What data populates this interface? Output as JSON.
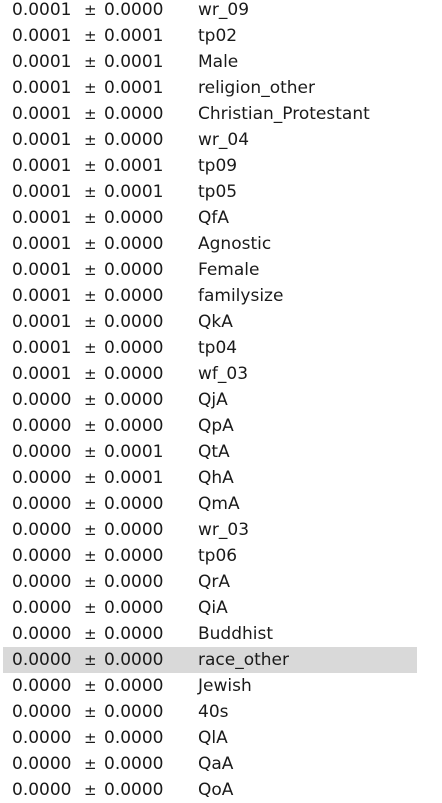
{
  "table": {
    "pm_symbol": "±",
    "selected_index": 25,
    "rows": [
      {
        "weight": "0.0001",
        "std": "0.0000",
        "feature": "wr_09"
      },
      {
        "weight": "0.0001",
        "std": "0.0001",
        "feature": "tp02"
      },
      {
        "weight": "0.0001",
        "std": "0.0001",
        "feature": "Male"
      },
      {
        "weight": "0.0001",
        "std": "0.0001",
        "feature": "religion_other"
      },
      {
        "weight": "0.0001",
        "std": "0.0000",
        "feature": "Christian_Protestant"
      },
      {
        "weight": "0.0001",
        "std": "0.0000",
        "feature": "wr_04"
      },
      {
        "weight": "0.0001",
        "std": "0.0001",
        "feature": "tp09"
      },
      {
        "weight": "0.0001",
        "std": "0.0001",
        "feature": "tp05"
      },
      {
        "weight": "0.0001",
        "std": "0.0000",
        "feature": "QfA"
      },
      {
        "weight": "0.0001",
        "std": "0.0000",
        "feature": "Agnostic"
      },
      {
        "weight": "0.0001",
        "std": "0.0000",
        "feature": "Female"
      },
      {
        "weight": "0.0001",
        "std": "0.0000",
        "feature": "familysize"
      },
      {
        "weight": "0.0001",
        "std": "0.0000",
        "feature": "QkA"
      },
      {
        "weight": "0.0001",
        "std": "0.0000",
        "feature": "tp04"
      },
      {
        "weight": "0.0001",
        "std": "0.0000",
        "feature": "wf_03"
      },
      {
        "weight": "0.0000",
        "std": "0.0000",
        "feature": "QjA"
      },
      {
        "weight": "0.0000",
        "std": "0.0000",
        "feature": "QpA"
      },
      {
        "weight": "0.0000",
        "std": "0.0001",
        "feature": "QtA"
      },
      {
        "weight": "0.0000",
        "std": "0.0001",
        "feature": "QhA"
      },
      {
        "weight": "0.0000",
        "std": "0.0000",
        "feature": "QmA"
      },
      {
        "weight": "0.0000",
        "std": "0.0000",
        "feature": "wr_03"
      },
      {
        "weight": "0.0000",
        "std": "0.0000",
        "feature": "tp06"
      },
      {
        "weight": "0.0000",
        "std": "0.0000",
        "feature": "QrA"
      },
      {
        "weight": "0.0000",
        "std": "0.0000",
        "feature": "QiA"
      },
      {
        "weight": "0.0000",
        "std": "0.0000",
        "feature": "Buddhist"
      },
      {
        "weight": "0.0000",
        "std": "0.0000",
        "feature": "race_other"
      },
      {
        "weight": "0.0000",
        "std": "0.0000",
        "feature": "Jewish"
      },
      {
        "weight": "0.0000",
        "std": "0.0000",
        "feature": "40s"
      },
      {
        "weight": "0.0000",
        "std": "0.0000",
        "feature": "QlA"
      },
      {
        "weight": "0.0000",
        "std": "0.0000",
        "feature": "QaA"
      },
      {
        "weight": "0.0000",
        "std": "0.0000",
        "feature": "QoA"
      }
    ]
  }
}
